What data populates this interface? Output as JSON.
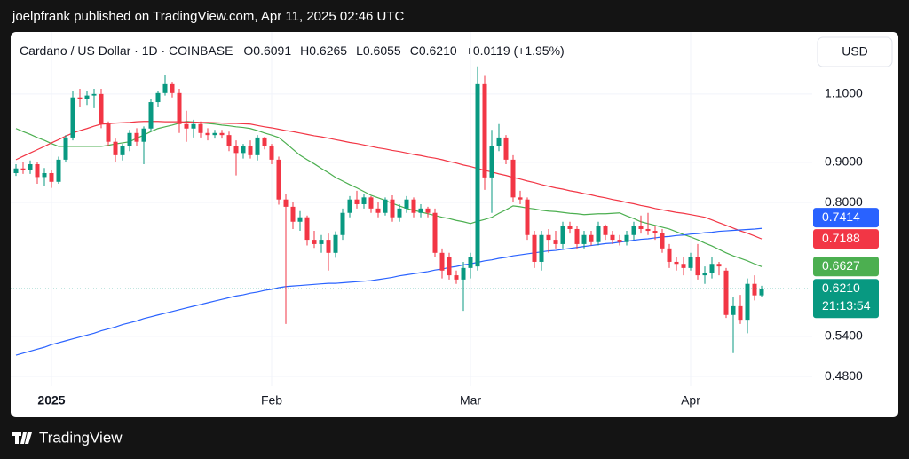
{
  "header": {
    "text": "joelpfrank published on TradingView.com, Apr 11, 2025 02:46 UTC"
  },
  "footer": {
    "brand": "TradingView"
  },
  "chart_data": {
    "type": "candlestick",
    "symbol": "Cardano / US Dollar · 1D · COINBASE",
    "ohlc_legend": [
      {
        "key": "O",
        "value": "0.6091"
      },
      {
        "key": "H",
        "value": "0.6265"
      },
      {
        "key": "L",
        "value": "0.6055"
      },
      {
        "key": "C",
        "value": "0.6210"
      }
    ],
    "change": "+0.0119 (+1.95%)",
    "currency": "USD",
    "log_scale": true,
    "grid": true,
    "up_color": "#089981",
    "down_color": "#f23645",
    "ylim": [
      0.4665,
      1.306
    ],
    "yticks": [
      {
        "value": 1.1,
        "label": "1.1000"
      },
      {
        "value": 0.9,
        "label": "0.9000"
      },
      {
        "value": 0.8,
        "label": "0.8000"
      },
      {
        "value": 0.54,
        "label": "0.5400"
      },
      {
        "value": 0.48,
        "label": "0.4800"
      }
    ],
    "categories": [
      null,
      null,
      null,
      null,
      null,
      "2025",
      null,
      null,
      null,
      null,
      null,
      null,
      null,
      null,
      null,
      null,
      null,
      null,
      null,
      null,
      null,
      null,
      null,
      null,
      null,
      null,
      null,
      null,
      null,
      null,
      null,
      null,
      null,
      null,
      null,
      null,
      "Feb",
      null,
      null,
      null,
      null,
      null,
      null,
      null,
      null,
      null,
      null,
      null,
      null,
      null,
      null,
      null,
      null,
      null,
      null,
      null,
      null,
      null,
      null,
      null,
      null,
      null,
      null,
      null,
      "Mar",
      null,
      null,
      null,
      null,
      null,
      null,
      null,
      null,
      null,
      null,
      null,
      null,
      null,
      null,
      null,
      null,
      null,
      null,
      null,
      null,
      null,
      null,
      null,
      null,
      null,
      null,
      null,
      null,
      null,
      null,
      "Apr",
      null,
      null,
      null,
      null,
      null,
      null,
      null,
      null,
      null,
      null
    ],
    "open": [
      0.872,
      0.884,
      0.88,
      0.895,
      0.862,
      0.872,
      0.85,
      0.907,
      0.968,
      1.089,
      1.085,
      1.095,
      1.1,
      1.007,
      0.956,
      0.919,
      0.943,
      0.981,
      0.956,
      0.994,
      1.074,
      1.103,
      1.132,
      1.103,
      1.007,
      0.994,
      1.007,
      0.981,
      0.975,
      0.981,
      0.975,
      0.943,
      0.925,
      0.943,
      0.919,
      0.968,
      0.943,
      0.907,
      0.807,
      0.79,
      0.756,
      0.766,
      0.717,
      0.708,
      0.717,
      0.69,
      0.727,
      0.776,
      0.807,
      0.796,
      0.812,
      0.786,
      0.776,
      0.807,
      0.766,
      0.786,
      0.807,
      0.776,
      0.786,
      0.776,
      0.69,
      0.681,
      0.646,
      0.638,
      0.66,
      0.663,
      1.132,
      0.861,
      0.943,
      0.968,
      0.907,
      0.812,
      0.807,
      0.727,
      0.672,
      0.727,
      0.717,
      0.708,
      0.746,
      0.74,
      0.708,
      0.727,
      0.712,
      0.746,
      0.727,
      0.717,
      0.712,
      0.727,
      0.746,
      0.74,
      0.736,
      0.731,
      0.699,
      0.672,
      0.668,
      0.66,
      0.681,
      0.646,
      0.65,
      0.668,
      0.655,
      0.575,
      0.59,
      0.567,
      0.63,
      0.6091
    ],
    "high": [
      0.895,
      0.9,
      0.905,
      0.9,
      0.885,
      0.88,
      0.915,
      0.975,
      1.11,
      1.117,
      1.11,
      1.117,
      1.117,
      1.015,
      0.965,
      0.95,
      0.99,
      0.995,
      1.0,
      1.085,
      1.11,
      1.162,
      1.14,
      1.117,
      1.047,
      1.02,
      1.015,
      0.995,
      0.99,
      0.99,
      0.985,
      0.96,
      0.95,
      0.96,
      0.975,
      0.97,
      0.95,
      0.915,
      0.82,
      0.8,
      0.78,
      0.77,
      0.736,
      0.727,
      0.73,
      0.735,
      0.786,
      0.815,
      0.828,
      0.82,
      0.815,
      0.8,
      0.812,
      0.817,
      0.796,
      0.815,
      0.812,
      0.796,
      0.79,
      0.786,
      0.699,
      0.69,
      0.655,
      0.672,
      0.69,
      1.193,
      1.16,
      0.99,
      1.007,
      0.975,
      0.919,
      0.828,
      0.812,
      0.736,
      0.736,
      0.74,
      0.736,
      0.756,
      0.756,
      0.746,
      0.736,
      0.736,
      0.756,
      0.75,
      0.736,
      0.727,
      0.736,
      0.756,
      0.77,
      0.776,
      0.746,
      0.74,
      0.708,
      0.681,
      0.681,
      0.69,
      0.708,
      0.663,
      0.681,
      0.672,
      0.66,
      0.606,
      0.61,
      0.64,
      0.646,
      0.6265
    ],
    "low": [
      0.865,
      0.87,
      0.87,
      0.845,
      0.84,
      0.835,
      0.845,
      0.9,
      0.96,
      1.06,
      1.065,
      1.055,
      0.995,
      0.945,
      0.9,
      0.905,
      0.93,
      0.945,
      0.895,
      0.985,
      1.06,
      1.095,
      1.089,
      0.981,
      0.956,
      0.968,
      0.968,
      0.96,
      0.965,
      0.965,
      0.93,
      0.866,
      0.91,
      0.91,
      0.905,
      0.935,
      0.895,
      0.795,
      0.56,
      0.74,
      0.736,
      0.705,
      0.7,
      0.69,
      0.655,
      0.68,
      0.717,
      0.766,
      0.786,
      0.786,
      0.776,
      0.766,
      0.77,
      0.756,
      0.756,
      0.776,
      0.766,
      0.766,
      0.766,
      0.681,
      0.64,
      0.638,
      0.63,
      0.582,
      0.64,
      0.655,
      0.83,
      0.776,
      0.93,
      0.895,
      0.8,
      0.796,
      0.717,
      0.66,
      0.655,
      0.69,
      0.699,
      0.699,
      0.73,
      0.699,
      0.699,
      0.705,
      0.705,
      0.717,
      0.708,
      0.705,
      0.705,
      0.717,
      0.73,
      0.727,
      0.717,
      0.69,
      0.66,
      0.655,
      0.646,
      0.655,
      0.638,
      0.63,
      0.64,
      0.646,
      0.57,
      0.514,
      0.56,
      0.545,
      0.6,
      0.6055
    ],
    "close": [
      0.884,
      0.88,
      0.895,
      0.862,
      0.872,
      0.85,
      0.907,
      0.968,
      1.089,
      1.085,
      1.095,
      1.1,
      1.007,
      0.956,
      0.919,
      0.943,
      0.981,
      0.956,
      0.994,
      1.074,
      1.103,
      1.132,
      1.103,
      1.007,
      0.994,
      1.007,
      0.981,
      0.975,
      0.981,
      0.975,
      0.943,
      0.925,
      0.943,
      0.919,
      0.968,
      0.943,
      0.907,
      0.807,
      0.79,
      0.756,
      0.766,
      0.717,
      0.708,
      0.717,
      0.69,
      0.727,
      0.776,
      0.807,
      0.796,
      0.812,
      0.786,
      0.776,
      0.807,
      0.766,
      0.786,
      0.807,
      0.776,
      0.786,
      0.776,
      0.69,
      0.655,
      0.646,
      0.638,
      0.66,
      0.681,
      1.132,
      0.861,
      0.943,
      0.968,
      0.907,
      0.812,
      0.807,
      0.727,
      0.672,
      0.727,
      0.717,
      0.708,
      0.746,
      0.74,
      0.708,
      0.727,
      0.712,
      0.746,
      0.727,
      0.717,
      0.712,
      0.727,
      0.746,
      0.74,
      0.736,
      0.731,
      0.699,
      0.672,
      0.668,
      0.66,
      0.681,
      0.646,
      0.65,
      0.668,
      0.663,
      0.575,
      0.59,
      0.567,
      0.63,
      0.6091,
      0.621
    ],
    "last_price_label": "0.6210",
    "countdown": "21:13:54",
    "series": [
      {
        "color": "#4caf50",
        "values": [
          0.994,
          0.985,
          0.977,
          0.968,
          0.96,
          0.951,
          0.943,
          0.943,
          0.943,
          0.943,
          0.943,
          0.943,
          0.943,
          0.946,
          0.95,
          0.953,
          0.956,
          0.966,
          0.975,
          0.985,
          0.994,
          0.999,
          1.004,
          1.01,
          1.015,
          1.013,
          1.011,
          1.009,
          1.007,
          1.004,
          1.002,
          0.999,
          0.997,
          0.994,
          0.988,
          0.981,
          0.975,
          0.968,
          0.952,
          0.935,
          0.919,
          0.907,
          0.896,
          0.884,
          0.873,
          0.861,
          0.852,
          0.843,
          0.835,
          0.826,
          0.817,
          0.811,
          0.805,
          0.798,
          0.792,
          0.786,
          0.782,
          0.778,
          0.774,
          0.77,
          0.766,
          0.763,
          0.759,
          0.756,
          0.752,
          0.757,
          0.761,
          0.766,
          0.775,
          0.783,
          0.792,
          0.79,
          0.787,
          0.785,
          0.782,
          0.78,
          0.779,
          0.777,
          0.775,
          0.774,
          0.772,
          0.773,
          0.774,
          0.774,
          0.775,
          0.776,
          0.769,
          0.763,
          0.756,
          0.752,
          0.748,
          0.744,
          0.74,
          0.734,
          0.728,
          0.723,
          0.717,
          0.71,
          0.704,
          0.697,
          0.69,
          0.684,
          0.679,
          0.674,
          0.668,
          0.6627
        ]
      },
      {
        "color": "#f23645",
        "values": [
          0.907,
          0.916,
          0.925,
          0.934,
          0.943,
          0.953,
          0.962,
          0.972,
          0.981,
          0.988,
          0.994,
          1.001,
          1.007,
          1.008,
          1.01,
          1.011,
          1.012,
          1.014,
          1.015,
          1.015,
          1.015,
          1.014,
          1.014,
          1.014,
          1.013,
          1.013,
          1.012,
          1.012,
          1.011,
          1.01,
          1.009,
          1.009,
          1.008,
          1.007,
          1.003,
          0.999,
          0.996,
          0.992,
          0.988,
          0.985,
          0.981,
          0.977,
          0.973,
          0.97,
          0.966,
          0.962,
          0.958,
          0.954,
          0.951,
          0.947,
          0.943,
          0.939,
          0.936,
          0.932,
          0.929,
          0.925,
          0.921,
          0.918,
          0.914,
          0.911,
          0.907,
          0.902,
          0.898,
          0.893,
          0.889,
          0.884,
          0.879,
          0.875,
          0.87,
          0.866,
          0.861,
          0.857,
          0.852,
          0.848,
          0.843,
          0.839,
          0.835,
          0.832,
          0.828,
          0.825,
          0.821,
          0.818,
          0.814,
          0.811,
          0.807,
          0.804,
          0.8,
          0.797,
          0.793,
          0.79,
          0.786,
          0.783,
          0.78,
          0.777,
          0.775,
          0.772,
          0.769,
          0.766,
          0.76,
          0.754,
          0.748,
          0.742,
          0.736,
          0.731,
          0.725,
          0.7188
        ]
      },
      {
        "color": "#2962ff",
        "values": [
          0.511,
          0.514,
          0.517,
          0.52,
          0.523,
          0.527,
          0.53,
          0.533,
          0.536,
          0.539,
          0.542,
          0.545,
          0.549,
          0.552,
          0.555,
          0.559,
          0.562,
          0.565,
          0.569,
          0.572,
          0.575,
          0.578,
          0.581,
          0.584,
          0.587,
          0.59,
          0.593,
          0.596,
          0.599,
          0.602,
          0.605,
          0.608,
          0.61,
          0.613,
          0.615,
          0.618,
          0.62,
          0.623,
          0.625,
          0.626,
          0.627,
          0.628,
          0.629,
          0.63,
          0.631,
          0.631,
          0.632,
          0.633,
          0.634,
          0.635,
          0.636,
          0.638,
          0.64,
          0.642,
          0.645,
          0.647,
          0.649,
          0.651,
          0.653,
          0.656,
          0.658,
          0.661,
          0.663,
          0.666,
          0.668,
          0.671,
          0.674,
          0.676,
          0.679,
          0.681,
          0.684,
          0.686,
          0.688,
          0.69,
          0.692,
          0.694,
          0.695,
          0.697,
          0.699,
          0.701,
          0.703,
          0.705,
          0.707,
          0.709,
          0.71,
          0.712,
          0.714,
          0.716,
          0.718,
          0.719,
          0.721,
          0.723,
          0.724,
          0.726,
          0.727,
          0.729,
          0.73,
          0.732,
          0.733,
          0.735,
          0.736,
          0.737,
          0.738,
          0.739,
          0.74,
          0.7414
        ]
      }
    ]
  }
}
